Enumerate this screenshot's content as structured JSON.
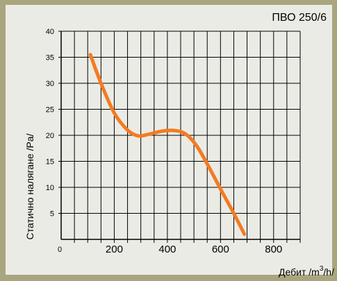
{
  "colors": {
    "frame": "#a9a57e",
    "panel": "#ebebe6",
    "grid": "#000000",
    "curve": "#f47b20"
  },
  "chart_data": {
    "type": "line",
    "title": "ПВО 250/6",
    "xlabel": "Дебит /m³/h/",
    "ylabel": "Статично налягане /Pa/",
    "origin_label": "0",
    "xlim": [
      0,
      900
    ],
    "ylim": [
      0,
      40
    ],
    "x_ticks": [
      200,
      400,
      600,
      800
    ],
    "x_tick_labels": [
      "200",
      "400",
      "600",
      "800"
    ],
    "y_ticks": [
      5,
      10,
      15,
      20,
      25,
      30,
      35,
      40
    ],
    "y_tick_labels": [
      "5",
      "10",
      "15",
      "20",
      "25",
      "30",
      "35",
      "40"
    ],
    "grid": true,
    "series": [
      {
        "x": [
          110,
          150,
          200,
          250,
          290,
          330,
          380,
          430,
          470,
          510,
          550,
          600,
          650,
          690
        ],
        "y": [
          35.5,
          30,
          24.3,
          21,
          19.9,
          20.2,
          20.8,
          20.9,
          20.2,
          18,
          14.5,
          9.7,
          5,
          1
        ]
      }
    ]
  }
}
